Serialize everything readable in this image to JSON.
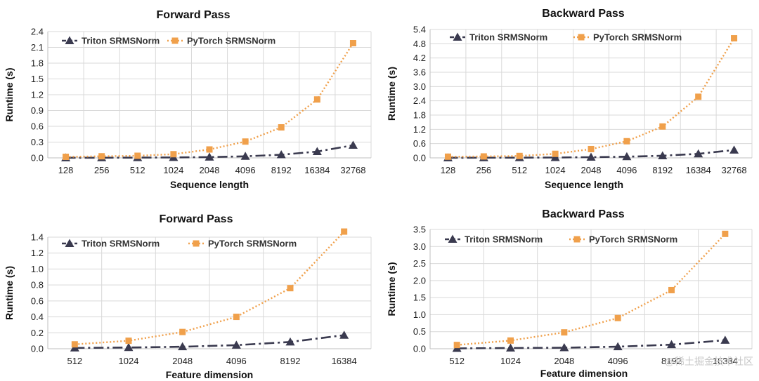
{
  "watermark": "@稀土掘金技术社区",
  "colors": {
    "triton": "#3a3a4f",
    "pytorch": "#f0a04b"
  },
  "chart_data": [
    {
      "type": "line",
      "title": "Forward Pass",
      "xlabel": "Sequence length",
      "ylabel": "Runtime (s)",
      "categories": [
        "128",
        "256",
        "512",
        "1024",
        "2048",
        "4096",
        "8192",
        "16384",
        "32768"
      ],
      "ylim": [
        0,
        2.4
      ],
      "yticks": [
        "0.0",
        "0.3",
        "0.6",
        "0.9",
        "1.2",
        "1.5",
        "1.8",
        "2.1",
        "2.4"
      ],
      "legend_position": "top-left",
      "series": [
        {
          "name": "Triton SRMSNorm",
          "values": [
            0.002,
            0.003,
            0.005,
            0.008,
            0.015,
            0.03,
            0.06,
            0.12,
            0.24
          ]
        },
        {
          "name": "PyTorch SRMSNorm",
          "values": [
            0.02,
            0.03,
            0.04,
            0.07,
            0.16,
            0.31,
            0.58,
            1.11,
            2.18
          ]
        }
      ]
    },
    {
      "type": "line",
      "title": "Backward Pass",
      "xlabel": "Sequence length",
      "ylabel": "Runtime (s)",
      "categories": [
        "128",
        "256",
        "512",
        "1024",
        "2048",
        "4096",
        "8192",
        "16384",
        "32768"
      ],
      "ylim": [
        0,
        5.4
      ],
      "yticks": [
        "0.0",
        "0.6",
        "1.2",
        "1.8",
        "2.4",
        "3.0",
        "3.6",
        "4.2",
        "4.8",
        "5.4"
      ],
      "legend_position": "top-left",
      "series": [
        {
          "name": "Triton SRMSNorm",
          "values": [
            0.005,
            0.008,
            0.01,
            0.015,
            0.03,
            0.05,
            0.09,
            0.17,
            0.33
          ]
        },
        {
          "name": "PyTorch SRMSNorm",
          "values": [
            0.05,
            0.06,
            0.08,
            0.17,
            0.37,
            0.7,
            1.32,
            2.57,
            5.03
          ]
        }
      ]
    },
    {
      "type": "line",
      "title": "Forward Pass",
      "xlabel": "Feature dimension",
      "ylabel": "Runtime (s)",
      "categories": [
        "512",
        "1024",
        "2048",
        "4096",
        "8192",
        "16384"
      ],
      "ylim": [
        0,
        1.4
      ],
      "yticks": [
        "0.0",
        "0.2",
        "0.4",
        "0.6",
        "0.8",
        "1.0",
        "1.2",
        "1.4"
      ],
      "legend_position": "top-left",
      "series": [
        {
          "name": "Triton SRMSNorm",
          "values": [
            0.01,
            0.015,
            0.025,
            0.045,
            0.085,
            0.17
          ]
        },
        {
          "name": "PyTorch SRMSNorm",
          "values": [
            0.055,
            0.1,
            0.21,
            0.4,
            0.76,
            1.47
          ]
        }
      ]
    },
    {
      "type": "line",
      "title": "Backward Pass",
      "xlabel": "Feature dimension",
      "ylabel": "Runtime (s)",
      "categories": [
        "512",
        "1024",
        "2048",
        "4096",
        "8192",
        "16384"
      ],
      "ylim": [
        0,
        3.5
      ],
      "yticks": [
        "0.0",
        "0.5",
        "1.0",
        "1.5",
        "2.0",
        "2.5",
        "3.0",
        "3.5"
      ],
      "legend_position": "top-left",
      "series": [
        {
          "name": "Triton SRMSNorm",
          "values": [
            0.01,
            0.02,
            0.03,
            0.06,
            0.12,
            0.25
          ]
        },
        {
          "name": "PyTorch SRMSNorm",
          "values": [
            0.11,
            0.24,
            0.48,
            0.9,
            1.72,
            3.37
          ]
        }
      ]
    }
  ]
}
